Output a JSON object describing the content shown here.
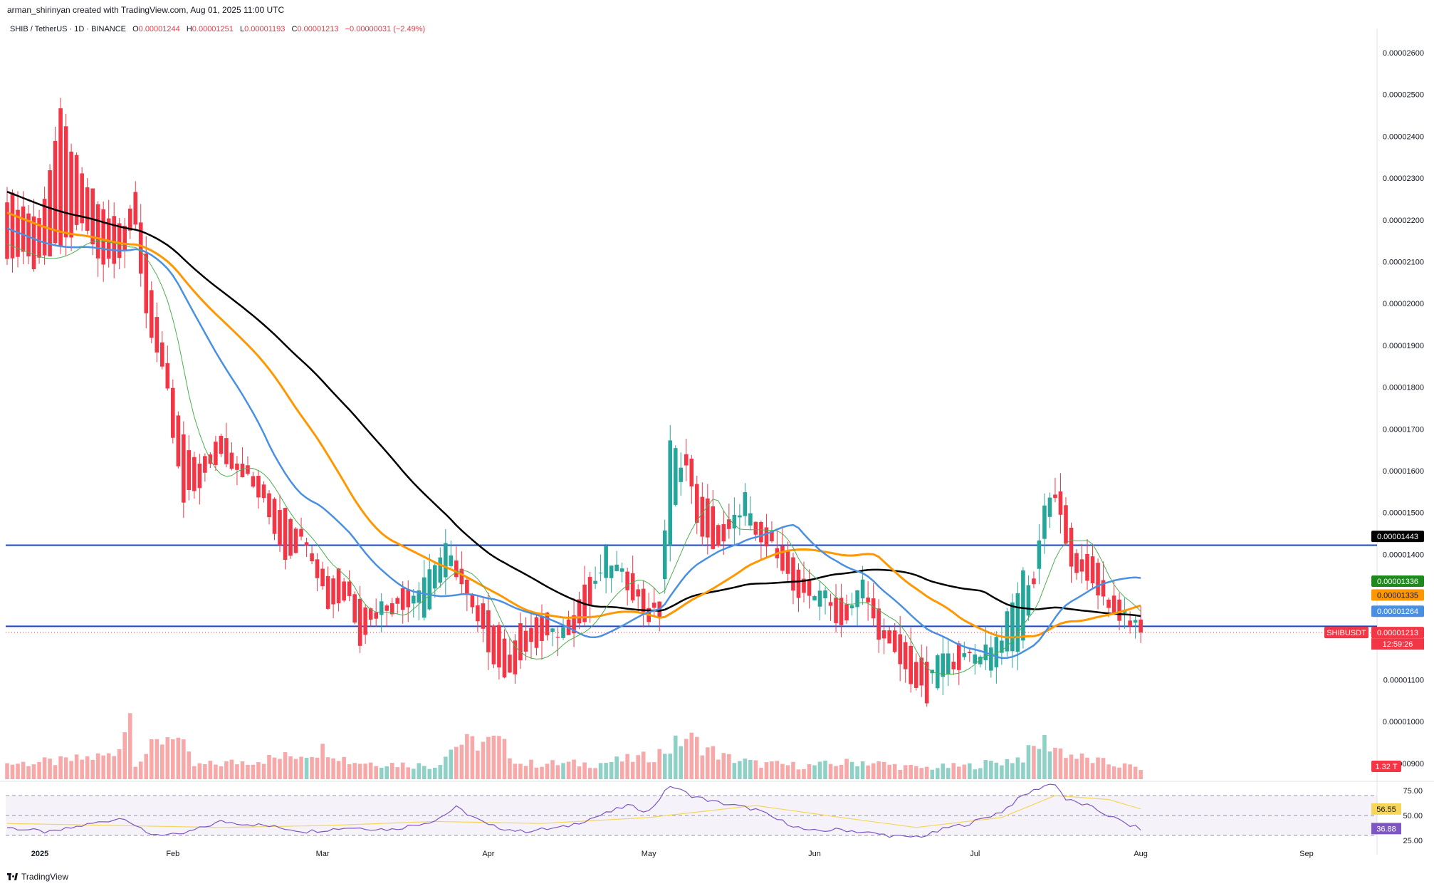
{
  "header": {
    "creator_line": "arman_shirinyan created with TradingView.com, Aug 01, 2025 11:00 UTC",
    "symbol_line": "SHIB / TetherUS · 1D · BINANCE",
    "ohlc": {
      "o_label": "O",
      "o": "0.00001244",
      "h_label": "H",
      "h": "0.00001251",
      "l_label": "L",
      "l": "0.00001193",
      "c_label": "C",
      "c": "0.00001213",
      "change": "−0.00000031 (−2.49%)"
    }
  },
  "colors": {
    "up": "#26a69a",
    "down": "#f23645",
    "vol_up": "#8fd1c6",
    "vol_down": "#f7a9a9",
    "sma_fast": "#4caf50",
    "sma_blue": "#4a90e2",
    "sma_orange": "#ff9800",
    "sma_black": "#000000",
    "hline": "#1848cc",
    "rsi": "#7e57c2",
    "rsi_ma": "#f5d65b"
  },
  "chart_data": {
    "type": "candlestick",
    "symbol": "SHIBUSDT",
    "timeframe": "1D",
    "exchange": "BINANCE",
    "price_axis": {
      "ticks": [
        "0.00002600",
        "0.00002500",
        "0.00002400",
        "0.00002300",
        "0.00002200",
        "0.00002100",
        "0.00002000",
        "0.00001900",
        "0.00001800",
        "0.00001700",
        "0.00001600",
        "0.00001500",
        "0.00001400",
        "0.00001300",
        "0.00001100",
        "0.00001000",
        "0.00000900"
      ],
      "tick_values": [
        26.0,
        25.0,
        24.0,
        23.0,
        22.0,
        21.0,
        20.0,
        19.0,
        18.0,
        17.0,
        16.0,
        15.0,
        14.0,
        13.0,
        11.0,
        10.0,
        9.0
      ],
      "scale_note": "values in units of 1e-6 USDT",
      "range": [
        8.6,
        26.7
      ]
    },
    "time_axis": {
      "labels": [
        "2025",
        "Feb",
        "Mar",
        "Apr",
        "May",
        "Jun",
        "Jul",
        "Aug",
        "Sep"
      ],
      "day_index": [
        0,
        31,
        59,
        90,
        120,
        151,
        181,
        212,
        243
      ]
    },
    "horizontal_lines": [
      14.22,
      12.28
    ],
    "badges": {
      "sma_black": "0.00001443",
      "sma_fast": "0.00001336",
      "sma_orange": "0.00001335",
      "sma_blue": "0.00001264",
      "symbol_badge": "SHIBUSDT",
      "last_price": "0.00001213",
      "countdown": "12:59:26",
      "volume": "1.32 T",
      "rsi": "36.88",
      "rsi_ma": "56.55"
    },
    "rsi_axis": {
      "labels": [
        "75.00",
        "50.00",
        "25.00"
      ],
      "values": [
        75,
        50,
        25
      ],
      "bands": [
        70,
        50,
        30
      ]
    },
    "candle_keys": [
      [
        0,
        22.6,
        21.2
      ],
      [
        6,
        22.0,
        20.9
      ],
      [
        10,
        24.5,
        21.4
      ],
      [
        14,
        23.0,
        21.9
      ],
      [
        18,
        22.2,
        21.0
      ],
      [
        22,
        21.8,
        21.3
      ],
      [
        24,
        22.8,
        21.8
      ],
      [
        26,
        21.2,
        19.8
      ],
      [
        30,
        18.4,
        17.8
      ],
      [
        31,
        17.9,
        16.8
      ],
      [
        33,
        16.9,
        15.2
      ],
      [
        36,
        16.0,
        15.7
      ],
      [
        40,
        16.8,
        16.4
      ],
      [
        44,
        16.1,
        16.0
      ],
      [
        48,
        15.8,
        15.2
      ],
      [
        52,
        15.0,
        14.0
      ],
      [
        56,
        14.3,
        14.4
      ],
      [
        60,
        13.6,
        12.8
      ],
      [
        64,
        13.5,
        13.0
      ],
      [
        66,
        12.9,
        12.0
      ],
      [
        70,
        12.6,
        12.8
      ],
      [
        74,
        13.3,
        12.7
      ],
      [
        78,
        12.6,
        13.5
      ],
      [
        82,
        13.6,
        14.1
      ],
      [
        84,
        14.0,
        13.6
      ],
      [
        88,
        12.8,
        12.3
      ],
      [
        92,
        12.3,
        11.3
      ],
      [
        94,
        11.5,
        11.0
      ],
      [
        96,
        12.2,
        11.6
      ],
      [
        100,
        12.6,
        11.9
      ],
      [
        104,
        12.0,
        12.2
      ],
      [
        108,
        13.2,
        12.4
      ],
      [
        112,
        13.6,
        14.0
      ],
      [
        116,
        13.6,
        13.3
      ],
      [
        120,
        12.8,
        12.5
      ],
      [
        122,
        12.7,
        12.6
      ],
      [
        124,
        14.4,
        16.6
      ],
      [
        127,
        16.5,
        16.1
      ],
      [
        130,
        15.4,
        14.3
      ],
      [
        134,
        14.7,
        14.2
      ],
      [
        138,
        14.8,
        15.4
      ],
      [
        140,
        14.8,
        14.3
      ],
      [
        144,
        14.3,
        14.1
      ],
      [
        148,
        13.6,
        12.8
      ],
      [
        152,
        12.9,
        13.2
      ],
      [
        156,
        12.8,
        12.3
      ],
      [
        160,
        12.8,
        13.3
      ],
      [
        162,
        13.1,
        12.4
      ],
      [
        164,
        12.3,
        11.9
      ],
      [
        168,
        11.9,
        11.2
      ],
      [
        172,
        11.3,
        10.5
      ],
      [
        174,
        10.8,
        11.6
      ],
      [
        178,
        11.7,
        11.4
      ],
      [
        182,
        11.3,
        11.7
      ],
      [
        186,
        11.5,
        12.1
      ],
      [
        190,
        11.9,
        13.5
      ],
      [
        192,
        13.4,
        13.3
      ],
      [
        194,
        14.2,
        15.3
      ],
      [
        196,
        15.5,
        15.4
      ],
      [
        198,
        15.3,
        14.2
      ],
      [
        200,
        14.0,
        13.4
      ],
      [
        203,
        14.0,
        13.4
      ],
      [
        206,
        13.0,
        12.6
      ],
      [
        210,
        12.5,
        12.44
      ],
      [
        212,
        12.44,
        12.13
      ]
    ],
    "volume_keys": [
      [
        0,
        0.35
      ],
      [
        10,
        0.4
      ],
      [
        20,
        0.55
      ],
      [
        23,
        1.5
      ],
      [
        24,
        0.4
      ],
      [
        31,
        1.1
      ],
      [
        35,
        0.3
      ],
      [
        40,
        0.35
      ],
      [
        52,
        0.5
      ],
      [
        60,
        0.7
      ],
      [
        64,
        0.4
      ],
      [
        80,
        0.3
      ],
      [
        84,
        0.8
      ],
      [
        92,
        0.85
      ],
      [
        96,
        0.35
      ],
      [
        110,
        0.35
      ],
      [
        120,
        0.5
      ],
      [
        124,
        0.7
      ],
      [
        127,
        0.95
      ],
      [
        134,
        0.5
      ],
      [
        140,
        0.35
      ],
      [
        150,
        0.3
      ],
      [
        160,
        0.4
      ],
      [
        170,
        0.25
      ],
      [
        180,
        0.3
      ],
      [
        186,
        0.4
      ],
      [
        190,
        0.5
      ],
      [
        192,
        0.7
      ],
      [
        194,
        0.85
      ],
      [
        198,
        0.6
      ],
      [
        200,
        0.5
      ],
      [
        206,
        0.35
      ],
      [
        212,
        0.25
      ]
    ],
    "rsi_keys": [
      [
        0,
        38
      ],
      [
        8,
        33
      ],
      [
        16,
        42
      ],
      [
        22,
        48
      ],
      [
        26,
        32
      ],
      [
        32,
        30
      ],
      [
        40,
        44
      ],
      [
        48,
        40
      ],
      [
        56,
        34
      ],
      [
        64,
        38
      ],
      [
        72,
        36
      ],
      [
        80,
        45
      ],
      [
        84,
        58
      ],
      [
        90,
        40
      ],
      [
        96,
        34
      ],
      [
        104,
        38
      ],
      [
        112,
        52
      ],
      [
        116,
        60
      ],
      [
        120,
        54
      ],
      [
        124,
        80
      ],
      [
        128,
        70
      ],
      [
        132,
        64
      ],
      [
        136,
        60
      ],
      [
        140,
        56
      ],
      [
        144,
        46
      ],
      [
        150,
        34
      ],
      [
        156,
        36
      ],
      [
        162,
        32
      ],
      [
        168,
        28
      ],
      [
        172,
        30
      ],
      [
        176,
        38
      ],
      [
        180,
        42
      ],
      [
        186,
        54
      ],
      [
        190,
        70
      ],
      [
        194,
        80
      ],
      [
        196,
        82
      ],
      [
        198,
        66
      ],
      [
        202,
        60
      ],
      [
        206,
        50
      ],
      [
        210,
        40
      ],
      [
        212,
        36.88
      ]
    ],
    "rsi_ma_keys": [
      [
        0,
        42
      ],
      [
        20,
        40
      ],
      [
        40,
        38
      ],
      [
        60,
        40
      ],
      [
        80,
        44
      ],
      [
        100,
        42
      ],
      [
        120,
        48
      ],
      [
        140,
        60
      ],
      [
        156,
        48
      ],
      [
        170,
        38
      ],
      [
        186,
        48
      ],
      [
        196,
        70
      ],
      [
        206,
        66
      ],
      [
        212,
        56.55
      ]
    ]
  }
}
